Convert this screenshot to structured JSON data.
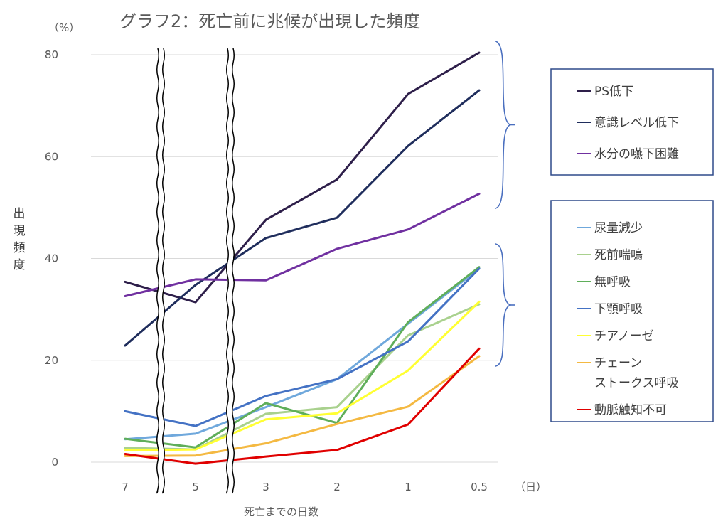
{
  "chart_data": {
    "type": "line",
    "title": "グラフ2：死亡前に兆候が出現した頻度",
    "ylabel": "出現頻度",
    "yunit": "（%）",
    "xlabel": "死亡までの日数",
    "xunit": "（日）",
    "categories": [
      "7",
      "5",
      "3",
      "2",
      "1",
      "0.5"
    ],
    "ylim": [
      0,
      80
    ],
    "yticks": [
      0,
      20,
      40,
      60,
      80
    ],
    "grid": "horizontal",
    "axis_breaks": "between 7–5 and 5–3",
    "legend_placement": "right",
    "series": [
      {
        "name": "PS低下",
        "color": "#2E1F4A",
        "values": [
          35.4,
          31.4,
          47.6,
          55.5,
          72.3,
          80.4
        ]
      },
      {
        "name": "意識レベル低下",
        "color": "#1F2D5C",
        "values": [
          22.9,
          34.8,
          44.0,
          48.0,
          62.1,
          73.0
        ]
      },
      {
        "name": "水分の嚥下困難",
        "color": "#7030A0",
        "values": [
          32.6,
          35.9,
          35.7,
          41.9,
          45.7,
          52.7
        ]
      },
      {
        "name": "尿量減少",
        "color": "#6FA8DC",
        "values": [
          4.5,
          5.6,
          10.8,
          16.3,
          27.2,
          38.0
        ]
      },
      {
        "name": "死前喘鳴",
        "color": "#A9D18E",
        "values": [
          2.8,
          2.5,
          9.5,
          10.8,
          24.9,
          31.0
        ]
      },
      {
        "name": "無呼吸",
        "color": "#5FAE5A",
        "values": [
          4.6,
          2.9,
          11.6,
          7.7,
          27.5,
          38.3
        ]
      },
      {
        "name": "下顎呼吸",
        "color": "#4472C4",
        "values": [
          10.0,
          7.1,
          13.0,
          16.3,
          23.7,
          38.0
        ]
      },
      {
        "name": "チアノーゼ",
        "color": "#FFFF33",
        "values": [
          2.3,
          2.5,
          8.4,
          9.6,
          18.0,
          31.5
        ]
      },
      {
        "name": "チェーン\nストークス呼吸",
        "color": "#F4B942",
        "values": [
          1.2,
          1.3,
          3.7,
          7.5,
          10.9,
          20.8
        ]
      },
      {
        "name": "動脈触知不可",
        "color": "#E00000",
        "values": [
          1.6,
          -0.3,
          1.1,
          2.4,
          7.4,
          22.3
        ]
      }
    ],
    "legend_groups": [
      {
        "series": [
          "PS低下",
          "意識レベル低下",
          "水分の嚥下困難"
        ]
      },
      {
        "series": [
          "尿量減少",
          "死前喘鳴",
          "無呼吸",
          "下顎呼吸",
          "チアノーゼ",
          "チェーン\nストークス呼吸",
          "動脈触知不可"
        ]
      }
    ]
  },
  "colors": {
    "axis_text": "#595959",
    "grid": "#D9D9D9",
    "bracket": "#4A6FBF",
    "legend_border": "#2F4A8A"
  }
}
